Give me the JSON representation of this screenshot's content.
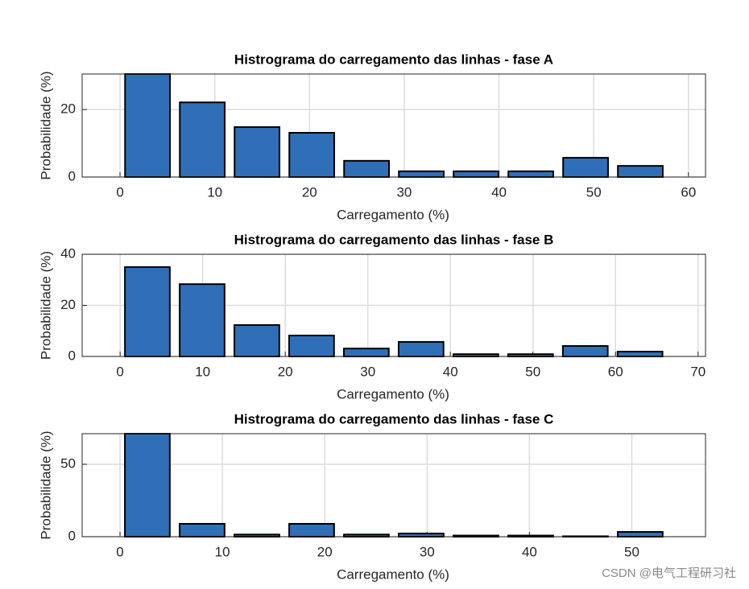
{
  "chart_data": [
    {
      "type": "bar",
      "title": "Histrograma do carregamento das linhas - fase A",
      "xlabel": "Carregamento (%)",
      "ylabel": "Probabilidade (%)",
      "x": [
        2.9,
        8.68,
        14.46,
        20.24,
        26.02,
        31.8,
        37.58,
        43.36,
        49.14,
        54.92
      ],
      "values": [
        30.5,
        22.1,
        14.8,
        13.1,
        4.8,
        1.7,
        1.7,
        1.7,
        5.7,
        3.3
      ],
      "color": "#2f6fb8",
      "xlim": [
        -4,
        61.8
      ],
      "ylim": [
        0,
        30.5
      ],
      "xticks": [
        0,
        10,
        20,
        30,
        40,
        50,
        60
      ],
      "yticks": [
        0,
        20
      ],
      "grid": true
    },
    {
      "type": "bar",
      "title": "Histrograma do carregamento das linhas - fase B",
      "xlabel": "Carregamento (%)",
      "ylabel": "Probabilidade (%)",
      "x": [
        3.3,
        9.93,
        16.56,
        23.19,
        29.82,
        36.45,
        43.08,
        49.71,
        56.34,
        62.97
      ],
      "values": [
        35,
        28.3,
        12.3,
        8.2,
        3.1,
        5.7,
        0.9,
        0.9,
        4.1,
        1.9
      ],
      "color": "#2f6fb8",
      "xlim": [
        -4.6,
        70.9
      ],
      "ylim": [
        0,
        40
      ],
      "xticks": [
        0,
        10,
        20,
        30,
        40,
        50,
        60,
        70
      ],
      "yticks": [
        0,
        20,
        40
      ],
      "grid": true
    },
    {
      "type": "bar",
      "title": "Histrograma do carregamento das linhas - fase C",
      "xlabel": "Carregamento (%)",
      "ylabel": "Probabilidade (%)",
      "x": [
        2.67,
        8.02,
        13.37,
        18.72,
        24.07,
        29.42,
        34.77,
        40.12,
        45.47,
        50.82
      ],
      "values": [
        71.1,
        8.9,
        1.5,
        8.9,
        1.5,
        2.2,
        0.8,
        0.8,
        0.3,
        3.3
      ],
      "color": "#2f6fb8",
      "xlim": [
        -3.7,
        57.2
      ],
      "ylim": [
        0,
        71.1
      ],
      "xticks": [
        0,
        10,
        20,
        30,
        40,
        50
      ],
      "yticks": [
        0,
        50
      ],
      "grid": true
    }
  ],
  "watermark": "CSDN @电气工程研习社"
}
